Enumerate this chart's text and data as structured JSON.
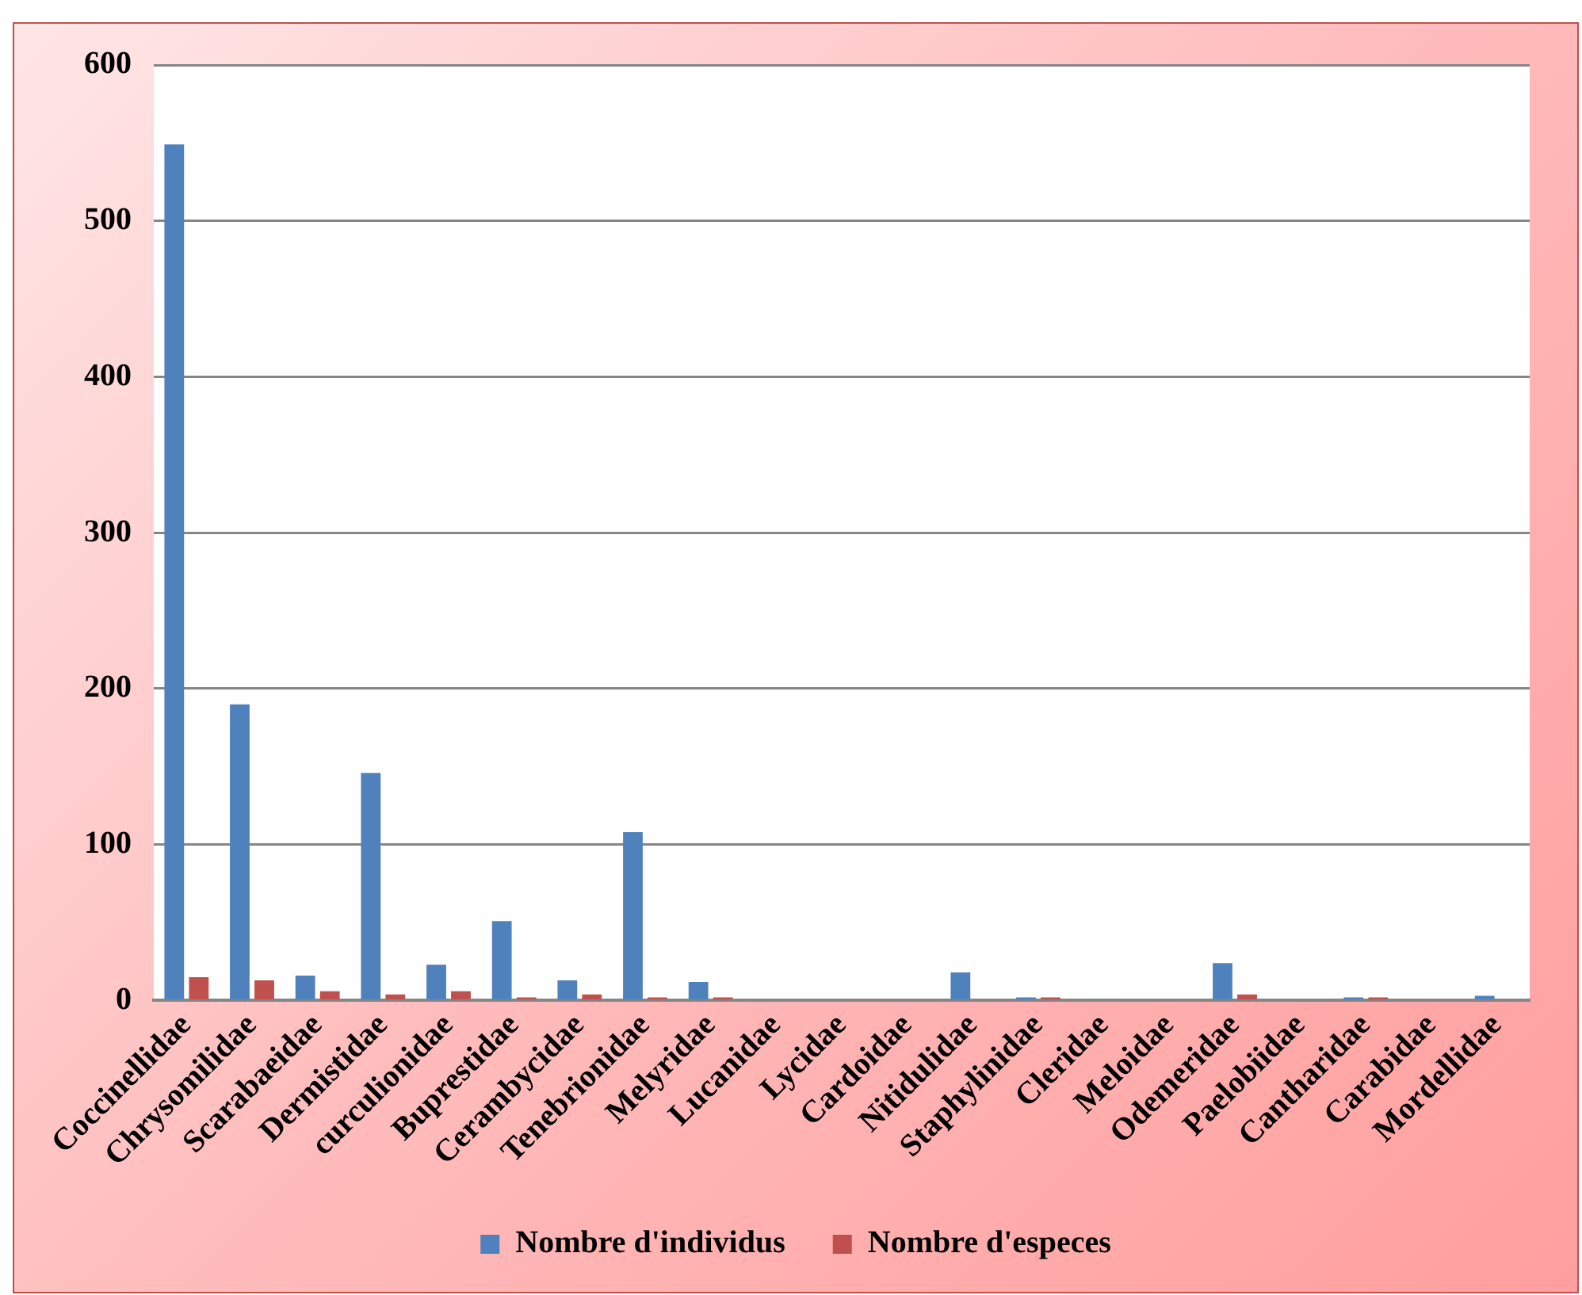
{
  "chart_data": {
    "type": "bar",
    "categories": [
      "Coccinellidae",
      "Chrysomilidae",
      "Scarabaeidae",
      "Dermistidae",
      "curculionidae",
      "Buprestidae",
      "Cerambycidae",
      "Tenebrionidae",
      "Melyridae",
      "Lucanidae",
      "Lycidae",
      "Cardoidae",
      "Nitidulidae",
      "Staphylinidae",
      "Cleridae",
      "Meloidae",
      "Odemeridae",
      "Paelobiidae",
      "Cantharidae",
      "Carabidae",
      "Mordellidae"
    ],
    "series": [
      {
        "name": "Nombre d'individus",
        "color": "#4f81bd",
        "values": [
          549,
          190,
          16,
          146,
          23,
          51,
          13,
          108,
          12,
          0,
          0,
          0,
          18,
          2,
          0,
          0,
          24,
          0,
          2,
          0,
          3
        ]
      },
      {
        "name": "Nombre d'especes",
        "color": "#c0504d",
        "values": [
          15,
          13,
          6,
          4,
          6,
          2,
          4,
          2,
          2,
          0,
          0,
          0,
          0,
          2,
          0,
          0,
          4,
          0,
          2,
          0,
          0
        ]
      }
    ],
    "ylim": [
      0,
      600
    ],
    "yticks": [
      0,
      100,
      200,
      300,
      400,
      500,
      600
    ],
    "grid": "y",
    "legend": "bottom"
  }
}
